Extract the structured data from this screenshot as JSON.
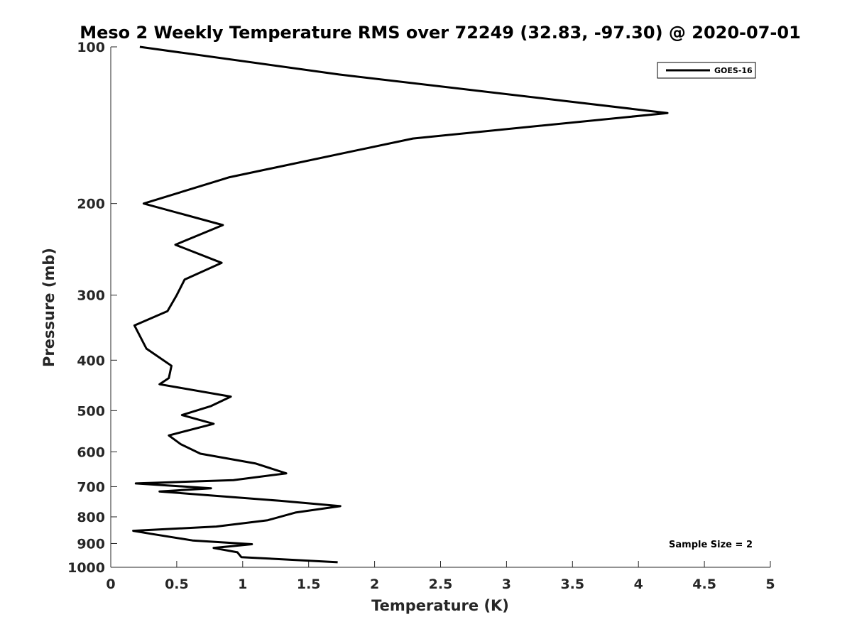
{
  "chart_data": {
    "type": "line",
    "title": "Meso 2 Weekly Temperature RMS over 72249 (32.83, -97.30) @ 2020-07-01",
    "xlabel": "Temperature (K)",
    "ylabel": "Pressure (mb)",
    "xlim": [
      0,
      5
    ],
    "ylim": [
      100,
      1000
    ],
    "y_scale": "log",
    "y_reversed": true,
    "grid": false,
    "legend_position": "top-right",
    "x_ticks": [
      "0",
      "0.5",
      "1",
      "1.5",
      "2",
      "2.5",
      "3",
      "3.5",
      "4",
      "4.5",
      "5"
    ],
    "x_tick_values": [
      0,
      0.5,
      1,
      1.5,
      2,
      2.5,
      3,
      3.5,
      4,
      4.5,
      5
    ],
    "y_ticks": [
      "100",
      "200",
      "300",
      "400",
      "500",
      "600",
      "700",
      "800",
      "900",
      "1000"
    ],
    "y_tick_values": [
      100,
      200,
      300,
      400,
      500,
      600,
      700,
      800,
      900,
      1000
    ],
    "series": [
      {
        "name": "GOES-16",
        "color": "#000000",
        "x": [
          0.22,
          1.73,
          4.22,
          2.29,
          0.9,
          0.25,
          0.85,
          0.49,
          0.84,
          0.56,
          0.5,
          0.43,
          0.18,
          0.27,
          0.46,
          0.44,
          0.37,
          0.91,
          0.76,
          0.54,
          0.78,
          0.44,
          0.53,
          0.68,
          1.1,
          1.33,
          0.93,
          0.19,
          0.76,
          0.37,
          1.28,
          1.74,
          1.4,
          1.19,
          0.8,
          0.17,
          0.3,
          0.62,
          1.07,
          0.78,
          0.96,
          0.99,
          1.72
        ],
        "y": [
          100,
          113,
          134,
          150,
          178,
          200,
          220,
          240,
          260,
          280,
          300,
          322,
          343,
          380,
          410,
          433,
          445,
          470,
          490,
          510,
          530,
          558,
          580,
          605,
          632,
          660,
          680,
          690,
          705,
          715,
          745,
          763,
          785,
          812,
          835,
          851,
          862,
          888,
          903,
          918,
          936,
          956,
          978
        ]
      }
    ],
    "annotations": [
      "Sample Size = 2"
    ]
  }
}
